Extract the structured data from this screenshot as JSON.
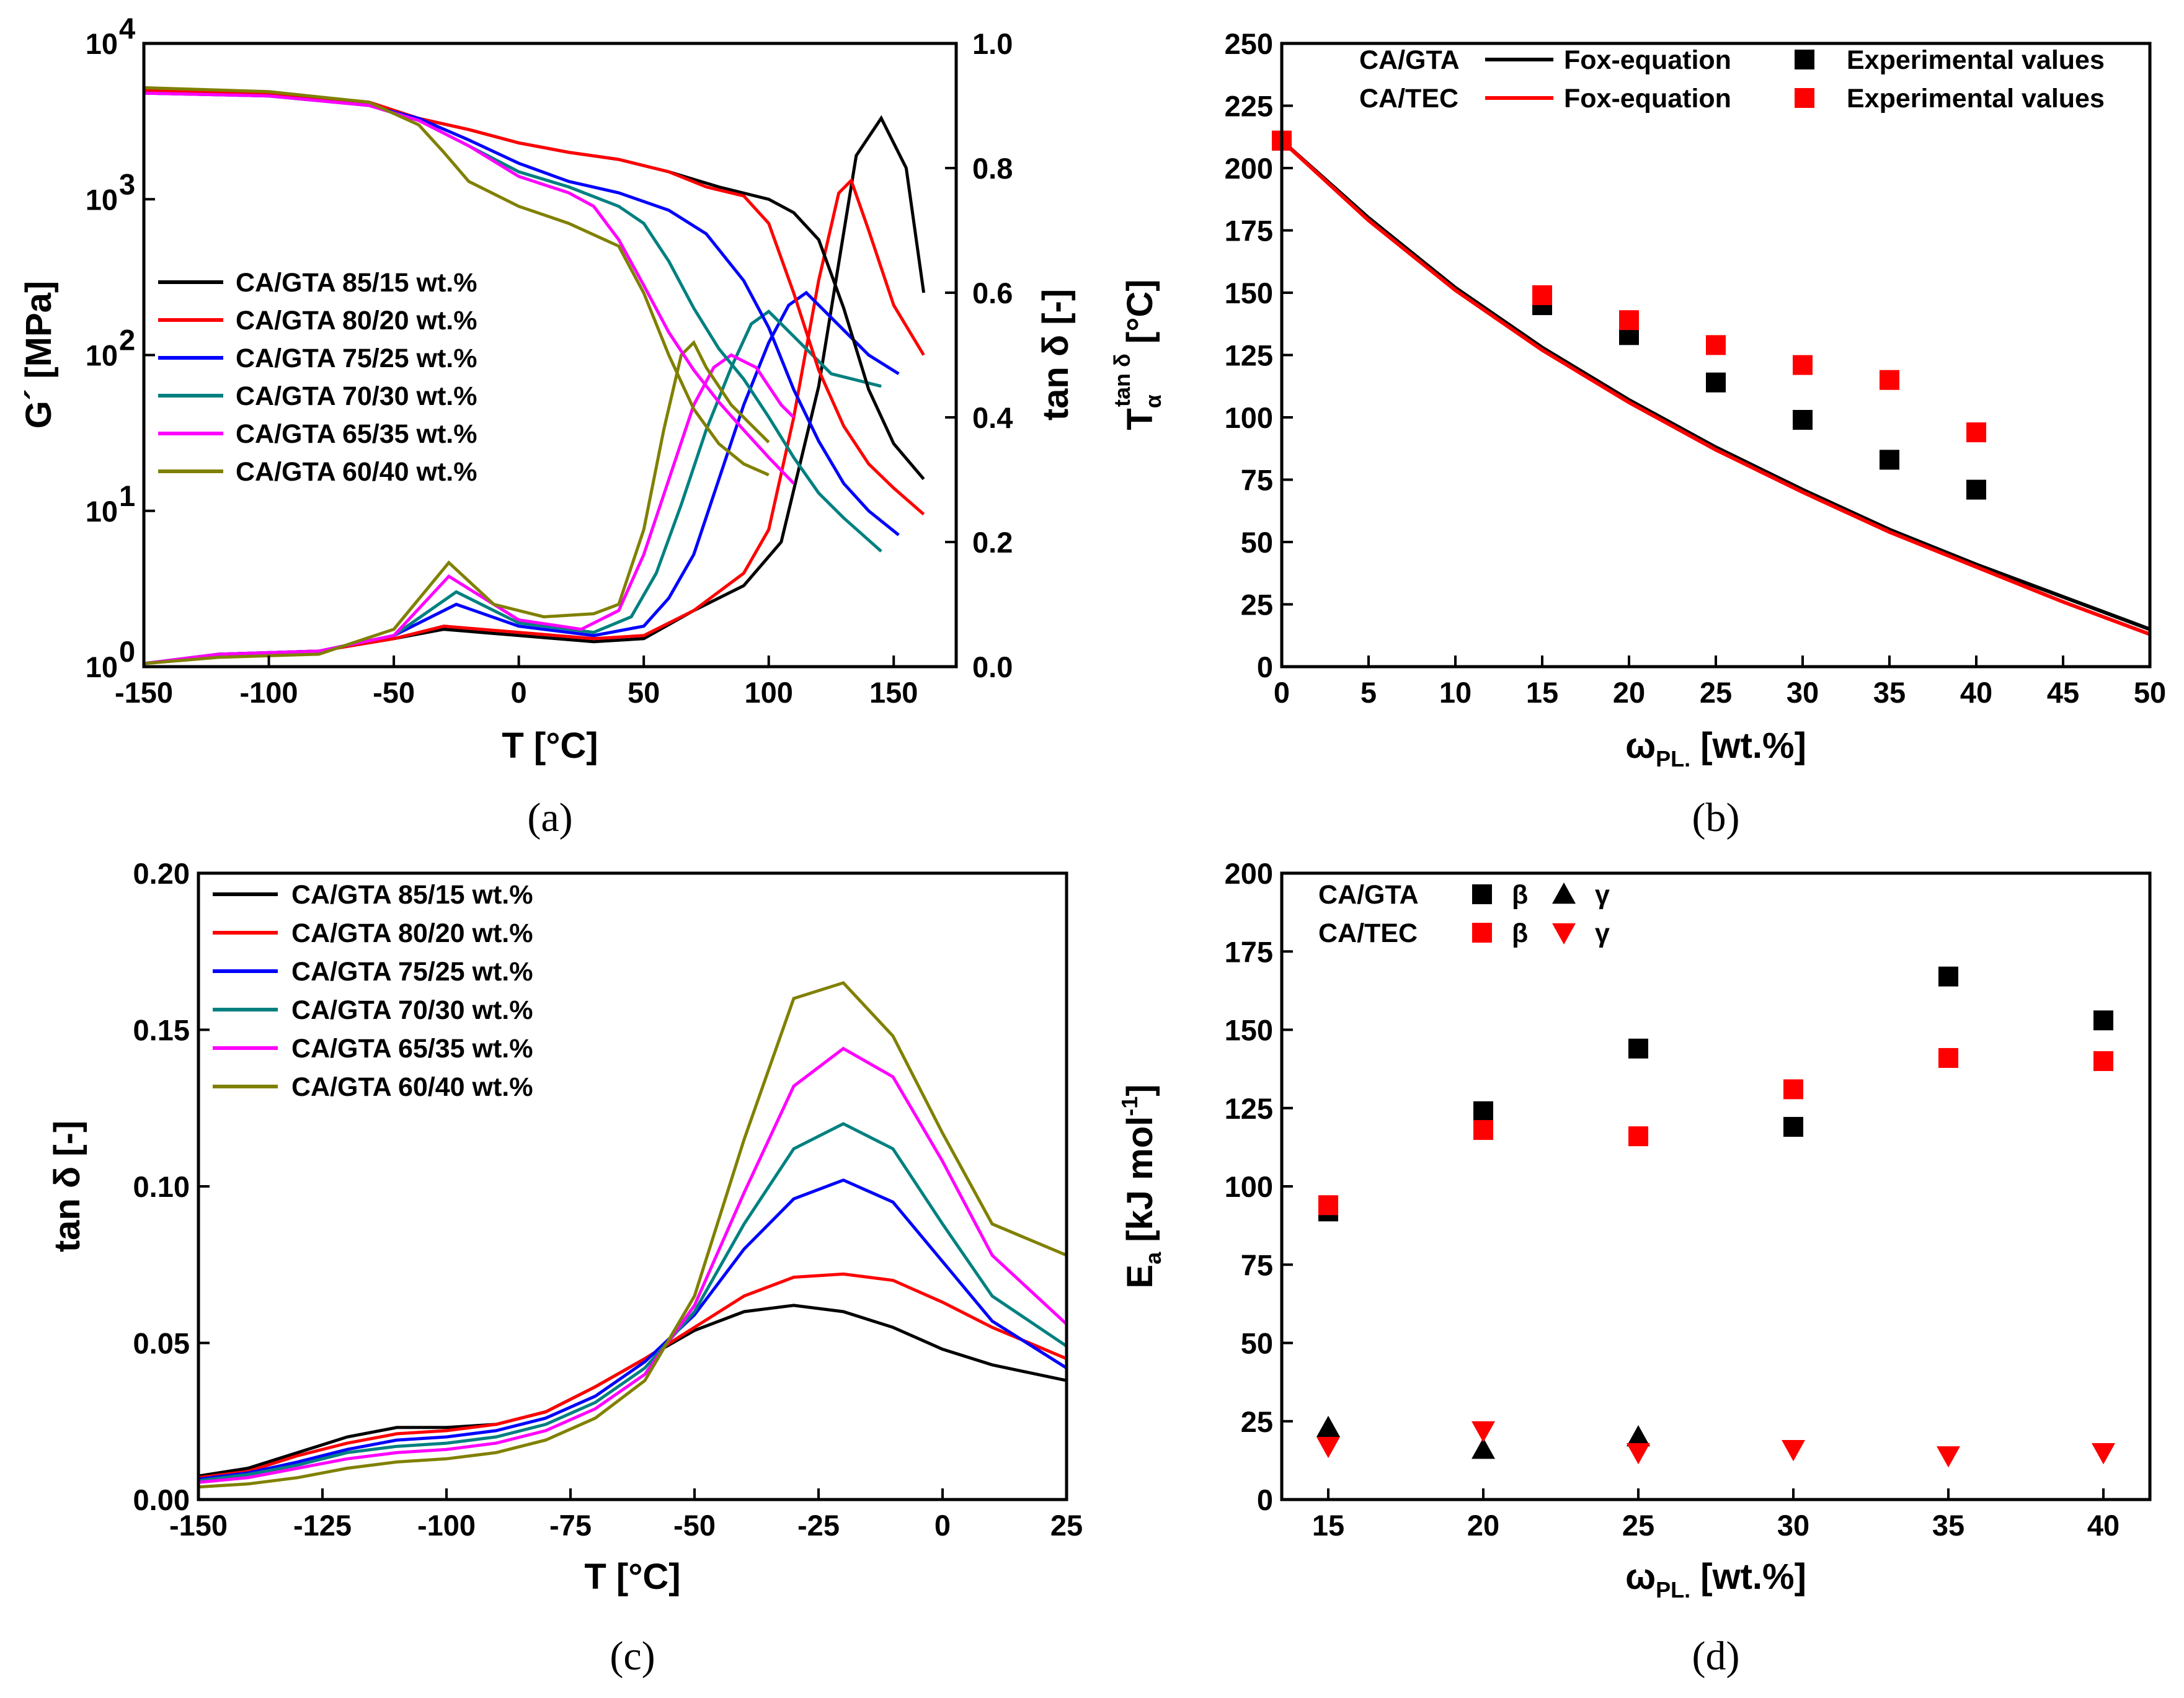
{
  "chart_data": [
    {
      "type": "line",
      "panel": "a",
      "caption": "(a)",
      "xlabel": "T [°C]",
      "ylabel_left": "G´ [MPa]",
      "ylabel_right": "tan δ [-]",
      "xlim": [
        -150,
        175
      ],
      "ylim_left_log10": [
        0,
        4
      ],
      "ylim_right": [
        0,
        1.0
      ],
      "x_ticks": [
        "-150",
        "-100",
        "-50",
        "0",
        "50",
        "100",
        "150"
      ],
      "y_left_ticks": [
        "10",
        "10",
        "10",
        "10",
        "10"
      ],
      "y_left_exponents": [
        "0",
        "1",
        "2",
        "3",
        "4"
      ],
      "y_right_ticks": [
        "0.0",
        "0.2",
        "0.4",
        "0.6",
        "0.8",
        "1.0"
      ],
      "legend": [
        "CA/GTA 85/15 wt.%",
        "CA/GTA 80/20 wt.%",
        "CA/GTA 75/25 wt.%",
        "CA/GTA 70/30 wt.%",
        "CA/GTA 65/35 wt.%",
        "CA/GTA 60/40 wt.%"
      ],
      "colors": [
        "#000000",
        "#ff0000",
        "#0000ff",
        "#008080",
        "#ff00ff",
        "#808000"
      ],
      "series_modulus_MPa": [
        {
          "name": "CA/GTA 85/15 wt.%",
          "x": [
            -150,
            -100,
            -60,
            -40,
            -20,
            0,
            20,
            40,
            60,
            80,
            100,
            110,
            120,
            130,
            140,
            150,
            162
          ],
          "y": [
            5000,
            4800,
            4200,
            3300,
            2800,
            2300,
            2000,
            1800,
            1500,
            1200,
            1000,
            820,
            550,
            200,
            60,
            27,
            16
          ]
        },
        {
          "name": "CA/GTA 80/20 wt.%",
          "x": [
            -150,
            -100,
            -60,
            -40,
            -20,
            0,
            20,
            40,
            60,
            75,
            90,
            100,
            110,
            120,
            130,
            140,
            150,
            162
          ],
          "y": [
            5000,
            4800,
            4200,
            3300,
            2800,
            2300,
            2000,
            1800,
            1500,
            1200,
            1050,
            700,
            250,
            80,
            35,
            20,
            14,
            9.5
          ]
        },
        {
          "name": "CA/GTA 75/25 wt.%",
          "x": [
            -150,
            -100,
            -60,
            -40,
            -20,
            0,
            20,
            40,
            60,
            75,
            90,
            100,
            110,
            120,
            130,
            140,
            152
          ],
          "y": [
            4800,
            4600,
            4000,
            3300,
            2400,
            1700,
            1300,
            1100,
            850,
            600,
            300,
            150,
            60,
            28,
            15,
            10,
            7
          ]
        },
        {
          "name": "CA/GTA 70/30 wt.%",
          "x": [
            -150,
            -100,
            -60,
            -40,
            -20,
            0,
            20,
            40,
            50,
            60,
            70,
            80,
            90,
            100,
            110,
            120,
            130,
            145
          ],
          "y": [
            4800,
            4600,
            4000,
            3200,
            2200,
            1500,
            1200,
            900,
            700,
            400,
            200,
            110,
            70,
            40,
            22,
            13,
            9,
            5.5
          ]
        },
        {
          "name": "CA/GTA 65/35 wt.%",
          "x": [
            -150,
            -100,
            -60,
            -40,
            -20,
            0,
            20,
            30,
            40,
            50,
            60,
            70,
            80,
            90,
            100,
            110
          ],
          "y": [
            4800,
            4600,
            4000,
            3200,
            2200,
            1400,
            1100,
            900,
            550,
            280,
            140,
            80,
            50,
            33,
            22,
            15
          ]
        },
        {
          "name": "CA/GTA 60/40 wt.%",
          "x": [
            -150,
            -100,
            -60,
            -40,
            -30,
            -20,
            0,
            20,
            40,
            50,
            60,
            70,
            80,
            90,
            100
          ],
          "y": [
            5200,
            4900,
            4200,
            3000,
            2000,
            1300,
            900,
            700,
            500,
            250,
            100,
            45,
            27,
            20,
            17
          ]
        }
      ],
      "series_tan_delta": [
        {
          "name": "CA/GTA 85/15 wt.%",
          "x": [
            -150,
            -120,
            -80,
            -50,
            -30,
            0,
            30,
            50,
            70,
            90,
            105,
            120,
            135,
            145,
            155,
            162
          ],
          "y": [
            0.005,
            0.02,
            0.025,
            0.045,
            0.06,
            0.05,
            0.04,
            0.045,
            0.09,
            0.13,
            0.2,
            0.45,
            0.82,
            0.88,
            0.8,
            0.6
          ]
        },
        {
          "name": "CA/GTA 80/20 wt.%",
          "x": [
            -150,
            -120,
            -80,
            -50,
            -30,
            0,
            30,
            50,
            70,
            90,
            100,
            110,
            120,
            128,
            133,
            140,
            150,
            162
          ],
          "y": [
            0.005,
            0.02,
            0.025,
            0.045,
            0.065,
            0.055,
            0.045,
            0.05,
            0.09,
            0.15,
            0.22,
            0.4,
            0.62,
            0.76,
            0.78,
            0.7,
            0.58,
            0.5
          ]
        },
        {
          "name": "CA/GTA 75/25 wt.%",
          "x": [
            -150,
            -120,
            -80,
            -50,
            -25,
            0,
            30,
            50,
            60,
            70,
            80,
            90,
            100,
            108,
            115,
            125,
            140,
            152
          ],
          "y": [
            0.005,
            0.02,
            0.025,
            0.05,
            0.1,
            0.065,
            0.05,
            0.065,
            0.11,
            0.18,
            0.3,
            0.42,
            0.52,
            0.58,
            0.6,
            0.56,
            0.5,
            0.47
          ]
        },
        {
          "name": "CA/GTA 70/30 wt.%",
          "x": [
            -150,
            -120,
            -80,
            -50,
            -25,
            0,
            30,
            45,
            55,
            65,
            75,
            85,
            93,
            100,
            110,
            125,
            145
          ],
          "y": [
            0.005,
            0.02,
            0.025,
            0.05,
            0.12,
            0.07,
            0.055,
            0.08,
            0.15,
            0.26,
            0.38,
            0.48,
            0.55,
            0.57,
            0.53,
            0.47,
            0.45
          ]
        },
        {
          "name": "CA/GTA 65/35 wt.%",
          "x": [
            -150,
            -120,
            -80,
            -50,
            -28,
            0,
            25,
            40,
            50,
            60,
            70,
            78,
            85,
            95,
            105,
            110
          ],
          "y": [
            0.005,
            0.02,
            0.025,
            0.05,
            0.145,
            0.075,
            0.06,
            0.09,
            0.18,
            0.3,
            0.42,
            0.48,
            0.5,
            0.48,
            0.42,
            0.4
          ]
        },
        {
          "name": "CA/GTA 60/40 wt.%",
          "x": [
            -150,
            -120,
            -80,
            -50,
            -28,
            -10,
            10,
            30,
            40,
            50,
            58,
            65,
            70,
            75,
            85,
            95,
            100
          ],
          "y": [
            0.005,
            0.015,
            0.02,
            0.06,
            0.167,
            0.1,
            0.08,
            0.085,
            0.1,
            0.22,
            0.38,
            0.5,
            0.52,
            0.48,
            0.42,
            0.38,
            0.36
          ]
        }
      ]
    },
    {
      "type": "line",
      "panel": "b",
      "caption": "(b)",
      "xlabel_main": "ω",
      "xlabel_sub": "PL.",
      "xlabel_rest": " [wt.%]",
      "ylabel_main": "T",
      "ylabel_sub": "α",
      "ylabel_sup": "tan δ",
      "ylabel_rest": " [°C]",
      "xlim": [
        0,
        50
      ],
      "ylim": [
        0,
        250
      ],
      "x_ticks": [
        "0",
        "5",
        "10",
        "15",
        "20",
        "25",
        "30",
        "35",
        "40",
        "45",
        "50"
      ],
      "y_ticks": [
        "0",
        "25",
        "50",
        "75",
        "100",
        "125",
        "150",
        "175",
        "200",
        "225",
        "250"
      ],
      "legend": [
        {
          "group": "CA/GTA",
          "line_label": "Fox-equation",
          "marker_label": "Experimental values",
          "color": "#000000"
        },
        {
          "group": "CA/TEC",
          "line_label": "Fox-equation",
          "marker_label": "Experimental values",
          "color": "#ff0000"
        }
      ],
      "fox_x": [
        0,
        5,
        10,
        15,
        20,
        25,
        30,
        35,
        40,
        45,
        50
      ],
      "fox_gta": [
        211,
        180,
        152,
        128,
        107,
        88,
        71,
        55,
        41,
        28,
        15
      ],
      "fox_tec": [
        211,
        179,
        151,
        127,
        106,
        87,
        70,
        54,
        40,
        26,
        13
      ],
      "exp_gta": {
        "x": [
          0,
          15,
          20,
          25,
          30,
          35,
          40
        ],
        "y": [
          211,
          145,
          133,
          114,
          99,
          83,
          71
        ]
      },
      "exp_tec": {
        "x": [
          0,
          15,
          20,
          25,
          30,
          35,
          40
        ],
        "y": [
          211,
          149,
          139,
          129,
          121,
          115,
          94
        ]
      }
    },
    {
      "type": "line",
      "panel": "c",
      "caption": "(c)",
      "xlabel": "T [°C]",
      "ylabel": "tan δ [-]",
      "xlim": [
        -150,
        25
      ],
      "ylim": [
        0,
        0.2
      ],
      "x_ticks": [
        "-150",
        "-125",
        "-100",
        "-75",
        "-50",
        "-25",
        "0",
        "25"
      ],
      "y_ticks": [
        "0.00",
        "0.05",
        "0.10",
        "0.15",
        "0.20"
      ],
      "legend": [
        "CA/GTA 85/15 wt.%",
        "CA/GTA 80/20 wt.%",
        "CA/GTA 75/25 wt.%",
        "CA/GTA 70/30 wt.%",
        "CA/GTA 65/35 wt.%",
        "CA/GTA 60/40 wt.%"
      ],
      "colors": [
        "#000000",
        "#ff0000",
        "#0000ff",
        "#008080",
        "#ff00ff",
        "#808000"
      ],
      "x": [
        -150,
        -140,
        -130,
        -120,
        -110,
        -100,
        -90,
        -80,
        -70,
        -60,
        -50,
        -40,
        -30,
        -20,
        -10,
        0,
        10,
        25
      ],
      "series": [
        {
          "name": "CA/GTA 85/15 wt.%",
          "values": [
            0.0075,
            0.01,
            0.015,
            0.02,
            0.023,
            0.023,
            0.024,
            0.028,
            0.036,
            0.045,
            0.054,
            0.06,
            0.062,
            0.06,
            0.055,
            0.048,
            0.043,
            0.038
          ]
        },
        {
          "name": "CA/GTA 80/20 wt.%",
          "values": [
            0.007,
            0.009,
            0.014,
            0.018,
            0.021,
            0.022,
            0.024,
            0.028,
            0.036,
            0.045,
            0.055,
            0.065,
            0.071,
            0.072,
            0.07,
            0.063,
            0.055,
            0.045
          ]
        },
        {
          "name": "CA/GTA 75/25 wt.%",
          "values": [
            0.0065,
            0.0085,
            0.012,
            0.016,
            0.019,
            0.02,
            0.022,
            0.026,
            0.033,
            0.044,
            0.059,
            0.08,
            0.096,
            0.102,
            0.095,
            0.076,
            0.057,
            0.042
          ]
        },
        {
          "name": "CA/GTA 70/30 wt.%",
          "values": [
            0.006,
            0.008,
            0.011,
            0.015,
            0.017,
            0.018,
            0.02,
            0.024,
            0.031,
            0.042,
            0.06,
            0.088,
            0.112,
            0.12,
            0.112,
            0.088,
            0.065,
            0.049
          ]
        },
        {
          "name": "CA/GTA 65/35 wt.%",
          "values": [
            0.0055,
            0.007,
            0.01,
            0.013,
            0.015,
            0.016,
            0.018,
            0.022,
            0.029,
            0.04,
            0.062,
            0.098,
            0.132,
            0.144,
            0.135,
            0.108,
            0.078,
            0.056
          ]
        },
        {
          "name": "CA/GTA 60/40 wt.%",
          "values": [
            0.004,
            0.005,
            0.007,
            0.01,
            0.012,
            0.013,
            0.015,
            0.019,
            0.026,
            0.038,
            0.065,
            0.115,
            0.16,
            0.165,
            0.148,
            0.117,
            0.088,
            0.078
          ]
        }
      ]
    },
    {
      "type": "scatter",
      "panel": "d",
      "caption": "(d)",
      "xlabel_main": "ω",
      "xlabel_sub": "PL.",
      "xlabel_rest": " [wt.%]",
      "ylabel_main": "E",
      "ylabel_sub": "a",
      "ylabel_rest": " [kJ mol",
      "ylabel_sup": "-1",
      "ylabel_end": "]",
      "xlim": [
        13.5,
        41.5
      ],
      "ylim": [
        0,
        200
      ],
      "x_ticks": [
        "15",
        "20",
        "25",
        "30",
        "35",
        "40"
      ],
      "y_ticks": [
        "0",
        "25",
        "50",
        "75",
        "100",
        "125",
        "150",
        "175",
        "200"
      ],
      "legend": [
        {
          "group": "CA/GTA",
          "beta": "β",
          "gamma": "γ",
          "color": "#000000"
        },
        {
          "group": "CA/TEC",
          "beta": "β",
          "gamma": "γ",
          "color": "#ff0000"
        }
      ],
      "x": [
        15,
        20,
        25,
        30,
        35,
        40
      ],
      "series": [
        {
          "name": "CA/GTA β",
          "marker": "square",
          "color": "#000000",
          "values": [
            92,
            124,
            144,
            119,
            167,
            153
          ]
        },
        {
          "name": "CA/TEC β",
          "marker": "square",
          "color": "#ff0000",
          "values": [
            94,
            118,
            116,
            131,
            141,
            140
          ]
        },
        {
          "name": "CA/GTA γ",
          "marker": "triangle-up",
          "color": "#000000",
          "x": [
            15,
            20,
            25
          ],
          "values": [
            23,
            16,
            20
          ]
        },
        {
          "name": "CA/TEC γ",
          "marker": "triangle-down",
          "color": "#ff0000",
          "values": [
            17,
            22,
            15,
            16,
            14,
            15
          ]
        }
      ]
    }
  ]
}
